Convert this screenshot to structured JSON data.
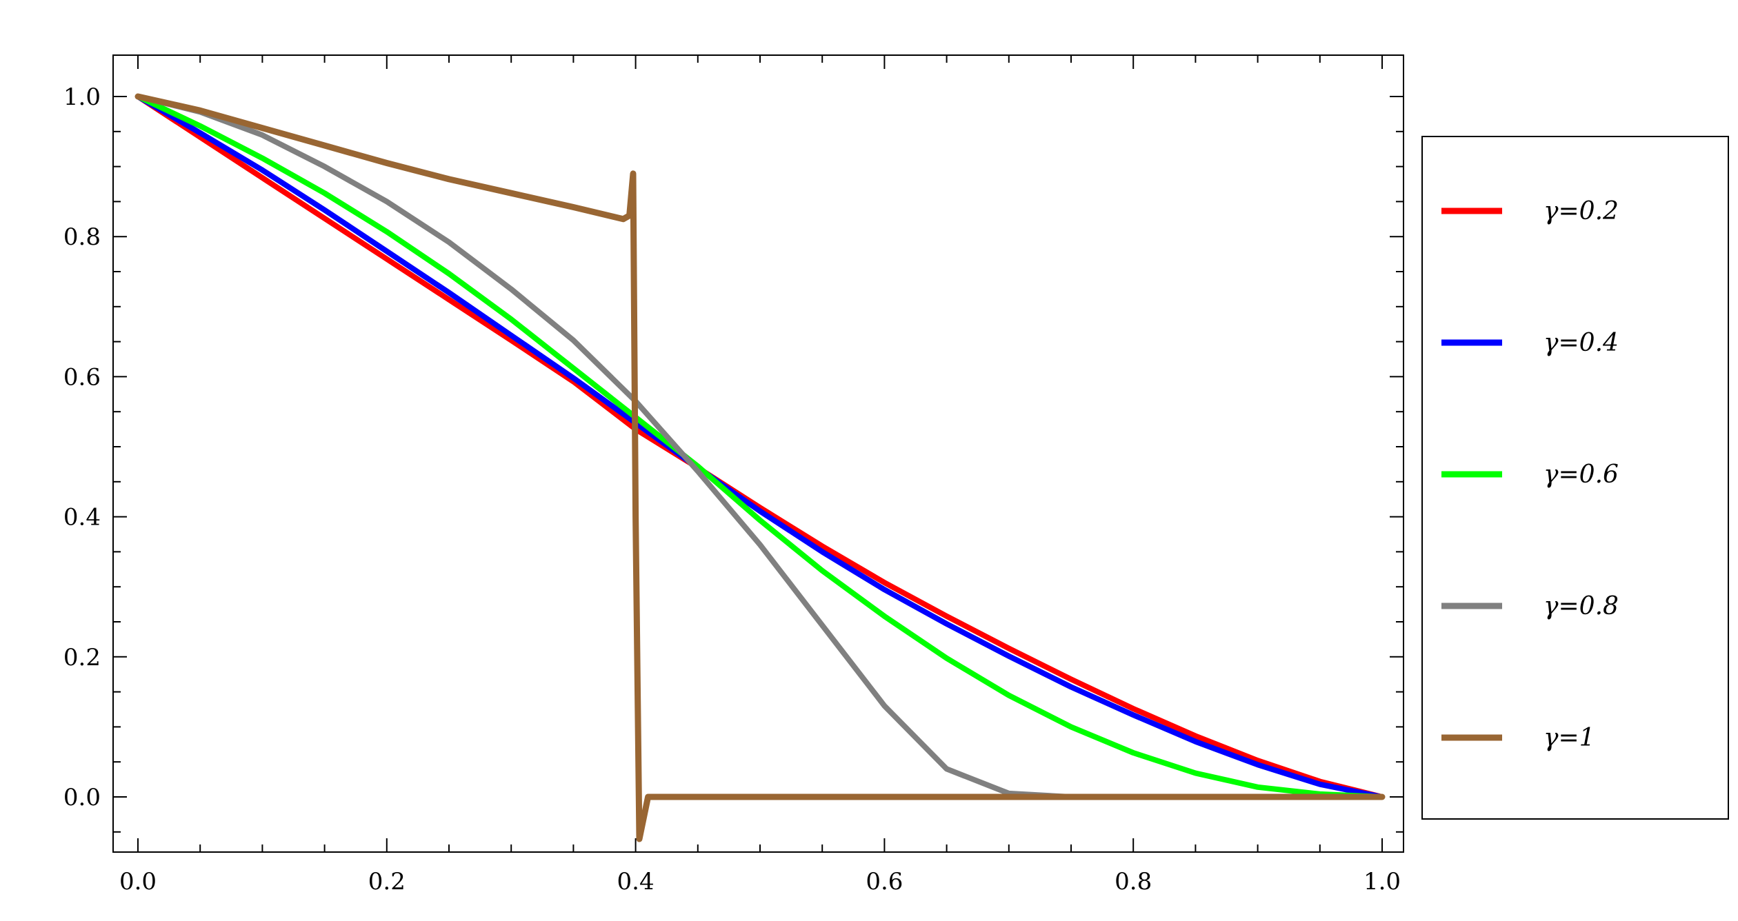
{
  "chart_data": {
    "type": "line",
    "title": "",
    "xlabel": "",
    "ylabel": "",
    "xlim": [
      -0.02,
      1.02
    ],
    "ylim": [
      -0.08,
      1.05
    ],
    "x_ticks": [
      "0.0",
      "0.2",
      "0.4",
      "0.6",
      "0.8",
      "1.0"
    ],
    "y_ticks": [
      "0.0",
      "0.2",
      "0.4",
      "0.6",
      "0.8",
      "1.0"
    ],
    "grid": false,
    "legend_position": "right",
    "series": [
      {
        "name": "γ=0.2",
        "color": "#ff0000",
        "x": [
          0.0,
          0.05,
          0.1,
          0.15,
          0.2,
          0.25,
          0.3,
          0.35,
          0.4,
          0.45,
          0.5,
          0.55,
          0.6,
          0.65,
          0.7,
          0.75,
          0.8,
          0.85,
          0.9,
          0.95,
          1.0
        ],
        "y": [
          1.0,
          0.942,
          0.884,
          0.826,
          0.768,
          0.71,
          0.652,
          0.593,
          0.525,
          0.47,
          0.413,
          0.358,
          0.306,
          0.258,
          0.212,
          0.168,
          0.126,
          0.087,
          0.052,
          0.022,
          0.0
        ]
      },
      {
        "name": "γ=0.4",
        "color": "#0000ff",
        "x": [
          0.0,
          0.05,
          0.1,
          0.15,
          0.2,
          0.25,
          0.3,
          0.35,
          0.4,
          0.45,
          0.5,
          0.55,
          0.6,
          0.65,
          0.7,
          0.75,
          0.8,
          0.85,
          0.9,
          0.95,
          1.0
        ],
        "y": [
          1.0,
          0.948,
          0.895,
          0.838,
          0.779,
          0.72,
          0.659,
          0.598,
          0.534,
          0.47,
          0.408,
          0.35,
          0.296,
          0.247,
          0.201,
          0.157,
          0.117,
          0.079,
          0.046,
          0.018,
          0.0
        ]
      },
      {
        "name": "γ=0.6",
        "color": "#00ff00",
        "x": [
          0.0,
          0.05,
          0.1,
          0.15,
          0.2,
          0.25,
          0.3,
          0.35,
          0.4,
          0.45,
          0.5,
          0.55,
          0.6,
          0.65,
          0.7,
          0.75,
          0.8,
          0.85,
          0.9,
          0.95,
          1.0
        ],
        "y": [
          1.0,
          0.958,
          0.912,
          0.862,
          0.807,
          0.747,
          0.682,
          0.612,
          0.542,
          0.472,
          0.395,
          0.323,
          0.258,
          0.198,
          0.145,
          0.1,
          0.063,
          0.034,
          0.014,
          0.004,
          0.0
        ]
      },
      {
        "name": "γ=0.8",
        "color": "#808080",
        "x": [
          0.0,
          0.05,
          0.1,
          0.15,
          0.2,
          0.25,
          0.3,
          0.35,
          0.4,
          0.45,
          0.5,
          0.55,
          0.6,
          0.65,
          0.7,
          0.75,
          0.8,
          0.85,
          0.9,
          0.95,
          1.0
        ],
        "y": [
          1.0,
          0.978,
          0.945,
          0.9,
          0.85,
          0.792,
          0.725,
          0.652,
          0.565,
          0.465,
          0.36,
          0.245,
          0.13,
          0.04,
          0.005,
          0.0,
          0.0,
          0.0,
          0.0,
          0.0,
          0.0
        ]
      },
      {
        "name": "γ=1",
        "color": "#996633",
        "x": [
          0.0,
          0.05,
          0.1,
          0.15,
          0.2,
          0.25,
          0.3,
          0.35,
          0.39,
          0.395,
          0.398,
          0.4,
          0.403,
          0.41,
          0.45,
          0.5,
          0.6,
          0.7,
          0.8,
          0.9,
          1.0
        ],
        "y": [
          1.0,
          0.98,
          0.955,
          0.93,
          0.905,
          0.882,
          0.862,
          0.842,
          0.825,
          0.83,
          0.89,
          0.4,
          -0.06,
          0.0,
          0.0,
          0.0,
          0.0,
          0.0,
          0.0,
          0.0,
          0.0
        ]
      }
    ]
  }
}
